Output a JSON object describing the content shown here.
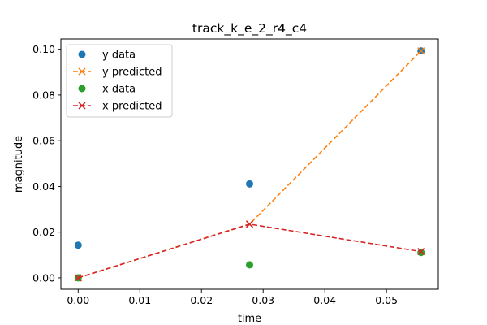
{
  "chart_data": {
    "type": "line",
    "title": "track_k_e_2_r4_c4",
    "xlabel": "time",
    "ylabel": "magnitude",
    "xlim": [
      -0.0028,
      0.0584
    ],
    "ylim": [
      -0.005,
      0.1045
    ],
    "xticks": [
      0.0,
      0.01,
      0.02,
      0.03,
      0.04,
      0.05
    ],
    "xtick_labels": [
      "0.00",
      "0.01",
      "0.02",
      "0.03",
      "0.04",
      "0.05"
    ],
    "yticks": [
      0.0,
      0.02,
      0.04,
      0.06,
      0.08,
      0.1
    ],
    "ytick_labels": [
      "0.00",
      "0.02",
      "0.04",
      "0.06",
      "0.08",
      "0.10"
    ],
    "grid": false,
    "legend": "upper-left",
    "series": [
      {
        "name": "y data",
        "kind": "scatter",
        "color": "#1f77b4",
        "marker": "circle",
        "x": [
          0.0,
          0.0278,
          0.0556
        ],
        "y": [
          0.0143,
          0.0411,
          0.0993
        ]
      },
      {
        "name": "y predicted",
        "kind": "line",
        "color": "#ff7f0e",
        "marker": "x",
        "dash": "dashed",
        "x": [
          0.0,
          0.0278,
          0.0556
        ],
        "y": [
          0.0,
          0.0235,
          0.0993
        ]
      },
      {
        "name": "x data",
        "kind": "scatter",
        "color": "#2ca02c",
        "marker": "circle",
        "x": [
          0.0,
          0.0278,
          0.0556
        ],
        "y": [
          0.0,
          0.0057,
          0.0111
        ]
      },
      {
        "name": "x predicted",
        "kind": "line",
        "color": "#d62728",
        "marker": "x",
        "dash": "dashed",
        "x": [
          0.0,
          0.0278,
          0.0556
        ],
        "y": [
          0.0,
          0.0235,
          0.0115
        ]
      }
    ]
  }
}
